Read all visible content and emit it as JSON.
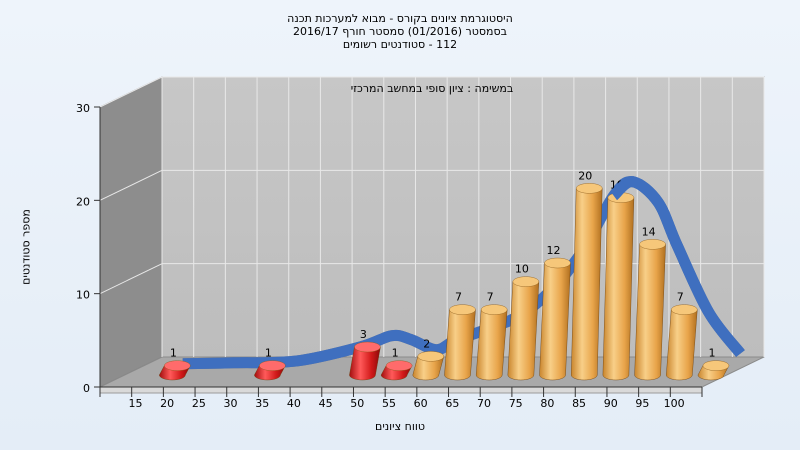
{
  "chart_data": {
    "type": "bar",
    "title_lines": [
      "היסטוגרמת ציונים בקורס - מבוא למערכות תכנה",
      "בסמסטר  (01/2016)  סמסטר חורף 2016/17",
      "112 - סטודנטים רשומים"
    ],
    "annotation": "במשימה : ציון סופי במחשב המרכזי",
    "xlabel": "טווח ציונים",
    "ylabel": "מספר סטודנטים",
    "ylim": [
      0,
      30
    ],
    "y_ticks": [
      "0",
      "10",
      "20",
      "30"
    ],
    "x_ticks": [
      "15",
      "20",
      "25",
      "30",
      "35",
      "40",
      "45",
      "50",
      "55",
      "60",
      "65",
      "70",
      "75",
      "80",
      "85",
      "90",
      "95",
      "100"
    ],
    "categories": [
      "15",
      "30",
      "45",
      "50",
      "55",
      "60",
      "65",
      "70",
      "75",
      "80",
      "85",
      "90",
      "95",
      "100"
    ],
    "values": [
      1,
      1,
      3,
      1,
      2,
      7,
      7,
      10,
      12,
      20,
      19,
      14,
      7,
      1
    ],
    "labels": [
      "1",
      "1",
      "3",
      "1",
      "2",
      "7",
      "7",
      "10",
      "12",
      "20",
      "19",
      "14",
      "7",
      "1"
    ],
    "bar_colors": [
      "#d21a1a",
      "#d21a1a",
      "#d21a1a",
      "#d21a1a",
      "#e8a44a",
      "#e8a44a",
      "#e8a44a",
      "#e8a44a",
      "#e8a44a",
      "#e8a44a",
      "#e8a44a",
      "#e8a44a",
      "#e8a44a",
      "#e8a44a"
    ],
    "fail_color": "#d21a1a",
    "pass_color": "#e8a44a",
    "curve_color": "#3f6fbf",
    "curve_x": [
      17,
      25,
      35,
      45,
      50,
      53,
      57,
      60,
      65,
      70,
      75,
      80,
      85,
      88,
      92,
      95,
      100,
      105
    ],
    "curve_y": [
      0.5,
      0.6,
      0.8,
      2.3,
      3.5,
      3.1,
      2.0,
      3.0,
      4.2,
      5.6,
      8.3,
      12.5,
      18.5,
      20.0,
      17.8,
      13.2,
      6.0,
      1.6
    ],
    "grid": true,
    "legend": "none"
  }
}
